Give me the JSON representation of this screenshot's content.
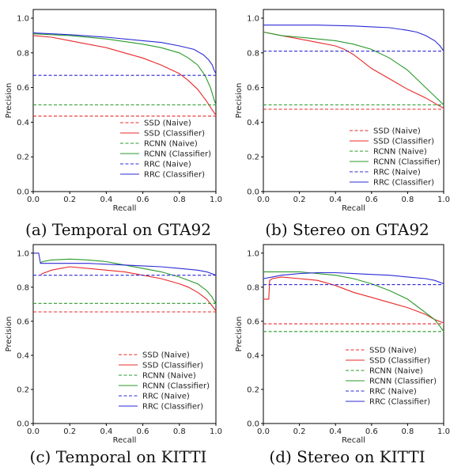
{
  "legend_labels": [
    "SSD (Naive)",
    "SSD (Classifier)",
    "RCNN (Naive)",
    "RCNN (Classifier)",
    "RRC (Naive)",
    "RRC (Classifier)"
  ],
  "colors": {
    "SSD": "#e8292b",
    "RCNN": "#2a9a2a",
    "RRC": "#2b2bd6"
  },
  "chart_data": [
    {
      "type": "line",
      "caption": "(a) Temporal on GTA92",
      "xlabel": "Recall",
      "ylabel": "Precision",
      "xlim": [
        0,
        1
      ],
      "ylim": [
        0,
        1.05
      ],
      "xticks": [
        "0.0",
        "0.2",
        "0.4",
        "0.6",
        "0.8",
        "1.0"
      ],
      "yticks": [
        "0.0",
        "0.2",
        "0.4",
        "0.6",
        "0.8",
        "1.0"
      ],
      "legend_position": "lower-right",
      "series": [
        {
          "name": "SSD (Naive)",
          "style": "dashed",
          "color": "#e8292b",
          "x": [
            0,
            1
          ],
          "y": [
            0.435,
            0.435
          ]
        },
        {
          "name": "SSD (Classifier)",
          "style": "solid",
          "color": "#e8292b",
          "x": [
            0,
            0.1,
            0.2,
            0.3,
            0.4,
            0.5,
            0.6,
            0.7,
            0.8,
            0.85,
            0.9,
            0.95,
            0.98,
            1.0
          ],
          "y": [
            0.9,
            0.89,
            0.87,
            0.85,
            0.83,
            0.8,
            0.77,
            0.73,
            0.68,
            0.64,
            0.59,
            0.52,
            0.47,
            0.44
          ]
        },
        {
          "name": "RCNN (Naive)",
          "style": "dashed",
          "color": "#2a9a2a",
          "x": [
            0,
            1
          ],
          "y": [
            0.5,
            0.5
          ]
        },
        {
          "name": "RCNN (Classifier)",
          "style": "solid",
          "color": "#2a9a2a",
          "x": [
            0,
            0.2,
            0.4,
            0.6,
            0.7,
            0.8,
            0.85,
            0.9,
            0.94,
            0.97,
            0.99,
            1.0
          ],
          "y": [
            0.91,
            0.9,
            0.88,
            0.85,
            0.83,
            0.8,
            0.77,
            0.73,
            0.67,
            0.6,
            0.53,
            0.5
          ]
        },
        {
          "name": "RRC (Naive)",
          "style": "dashed",
          "color": "#2b2bd6",
          "x": [
            0,
            1
          ],
          "y": [
            0.67,
            0.67
          ]
        },
        {
          "name": "RRC (Classifier)",
          "style": "solid",
          "color": "#2b2bd6",
          "x": [
            0,
            0.2,
            0.4,
            0.6,
            0.7,
            0.8,
            0.88,
            0.93,
            0.96,
            0.98,
            0.99,
            1.0
          ],
          "y": [
            0.915,
            0.905,
            0.89,
            0.87,
            0.86,
            0.84,
            0.82,
            0.79,
            0.76,
            0.73,
            0.7,
            0.68
          ]
        }
      ]
    },
    {
      "type": "line",
      "caption": "(b) Stereo on GTA92",
      "xlabel": "Recall",
      "ylabel": "Precision",
      "xlim": [
        0,
        1
      ],
      "ylim": [
        0,
        1.05
      ],
      "xticks": [
        "0.0",
        "0.2",
        "0.4",
        "0.6",
        "0.8",
        "1.0"
      ],
      "yticks": [
        "0.0",
        "0.2",
        "0.4",
        "0.6",
        "0.8",
        "1.0"
      ],
      "legend_position": "lower-right",
      "series": [
        {
          "name": "SSD (Naive)",
          "style": "dashed",
          "color": "#e8292b",
          "x": [
            0,
            1
          ],
          "y": [
            0.475,
            0.475
          ]
        },
        {
          "name": "SSD (Classifier)",
          "style": "solid",
          "color": "#e8292b",
          "x": [
            0,
            0.1,
            0.2,
            0.3,
            0.4,
            0.45,
            0.5,
            0.55,
            0.6,
            0.7,
            0.8,
            0.9,
            0.95,
            1.0
          ],
          "y": [
            0.92,
            0.9,
            0.88,
            0.86,
            0.84,
            0.82,
            0.79,
            0.75,
            0.71,
            0.65,
            0.59,
            0.54,
            0.51,
            0.48
          ]
        },
        {
          "name": "RCNN (Naive)",
          "style": "dashed",
          "color": "#2a9a2a",
          "x": [
            0,
            1
          ],
          "y": [
            0.5,
            0.5
          ]
        },
        {
          "name": "RCNN (Classifier)",
          "style": "solid",
          "color": "#2a9a2a",
          "x": [
            0,
            0.1,
            0.2,
            0.3,
            0.4,
            0.5,
            0.6,
            0.7,
            0.8,
            0.85,
            0.9,
            0.95,
            1.0
          ],
          "y": [
            0.92,
            0.9,
            0.89,
            0.88,
            0.87,
            0.85,
            0.82,
            0.77,
            0.7,
            0.65,
            0.6,
            0.55,
            0.5
          ]
        },
        {
          "name": "RRC (Naive)",
          "style": "dashed",
          "color": "#2b2bd6",
          "x": [
            0,
            1
          ],
          "y": [
            0.81,
            0.81
          ]
        },
        {
          "name": "RRC (Classifier)",
          "style": "solid",
          "color": "#2b2bd6",
          "x": [
            0,
            0.3,
            0.5,
            0.6,
            0.7,
            0.8,
            0.85,
            0.9,
            0.95,
            0.98,
            1.0
          ],
          "y": [
            0.96,
            0.96,
            0.955,
            0.95,
            0.945,
            0.93,
            0.92,
            0.9,
            0.87,
            0.84,
            0.81
          ]
        }
      ]
    },
    {
      "type": "line",
      "caption": "(c) Temporal on KITTI",
      "xlabel": "Recall",
      "ylabel": "Precision",
      "xlim": [
        0,
        1
      ],
      "ylim": [
        0,
        1.05
      ],
      "xticks": [
        "0.0",
        "0.2",
        "0.4",
        "0.6",
        "0.8",
        "1.0"
      ],
      "yticks": [
        "0.0",
        "0.2",
        "0.4",
        "0.6",
        "0.8",
        "1.0"
      ],
      "legend_position": "lower-right",
      "series": [
        {
          "name": "SSD (Naive)",
          "style": "dashed",
          "color": "#e8292b",
          "x": [
            0,
            1
          ],
          "y": [
            0.655,
            0.655
          ]
        },
        {
          "name": "SSD (Classifier)",
          "style": "solid",
          "color": "#e8292b",
          "x": [
            0.04,
            0.05,
            0.1,
            0.15,
            0.2,
            0.3,
            0.4,
            0.5,
            0.6,
            0.7,
            0.8,
            0.85,
            0.9,
            0.95,
            0.98,
            1.0
          ],
          "y": [
            0.87,
            0.88,
            0.9,
            0.91,
            0.92,
            0.91,
            0.9,
            0.89,
            0.87,
            0.85,
            0.82,
            0.8,
            0.77,
            0.73,
            0.69,
            0.66
          ]
        },
        {
          "name": "RCNN (Naive)",
          "style": "dashed",
          "color": "#2a9a2a",
          "x": [
            0,
            1
          ],
          "y": [
            0.705,
            0.705
          ]
        },
        {
          "name": "RCNN (Classifier)",
          "style": "solid",
          "color": "#2a9a2a",
          "x": [
            0.04,
            0.05,
            0.1,
            0.2,
            0.3,
            0.4,
            0.5,
            0.6,
            0.7,
            0.8,
            0.9,
            0.95,
            0.98,
            1.0
          ],
          "y": [
            0.94,
            0.95,
            0.96,
            0.965,
            0.96,
            0.95,
            0.93,
            0.91,
            0.89,
            0.86,
            0.82,
            0.78,
            0.74,
            0.7
          ]
        },
        {
          "name": "RRC (Naive)",
          "style": "dashed",
          "color": "#2b2bd6",
          "x": [
            0,
            1
          ],
          "y": [
            0.87,
            0.87
          ]
        },
        {
          "name": "RRC (Classifier)",
          "style": "solid",
          "color": "#2b2bd6",
          "x": [
            0,
            0.03,
            0.04,
            0.1,
            0.2,
            0.3,
            0.4,
            0.5,
            0.6,
            0.7,
            0.8,
            0.9,
            0.95,
            1.0
          ],
          "y": [
            1.0,
            1.0,
            0.94,
            0.94,
            0.94,
            0.94,
            0.935,
            0.93,
            0.925,
            0.92,
            0.91,
            0.9,
            0.89,
            0.87
          ]
        }
      ]
    },
    {
      "type": "line",
      "caption": "(d) Stereo on KITTI",
      "xlabel": "Recall",
      "ylabel": "Precision",
      "xlim": [
        0,
        1
      ],
      "ylim": [
        0,
        1.05
      ],
      "xticks": [
        "0.0",
        "0.2",
        "0.4",
        "0.6",
        "0.8",
        "1.0"
      ],
      "yticks": [
        "0.0",
        "0.2",
        "0.4",
        "0.6",
        "0.8",
        "1.0"
      ],
      "legend_position": "lower-right",
      "series": [
        {
          "name": "SSD (Naive)",
          "style": "dashed",
          "color": "#e8292b",
          "x": [
            0,
            1
          ],
          "y": [
            0.585,
            0.585
          ]
        },
        {
          "name": "SSD (Classifier)",
          "style": "solid",
          "color": "#e8292b",
          "x": [
            0,
            0.03,
            0.035,
            0.05,
            0.1,
            0.2,
            0.3,
            0.4,
            0.5,
            0.6,
            0.7,
            0.8,
            0.9,
            0.95,
            1.0
          ],
          "y": [
            0.73,
            0.73,
            0.84,
            0.85,
            0.86,
            0.85,
            0.84,
            0.81,
            0.77,
            0.74,
            0.71,
            0.68,
            0.64,
            0.61,
            0.59
          ]
        },
        {
          "name": "RCNN (Naive)",
          "style": "dashed",
          "color": "#2a9a2a",
          "x": [
            0,
            1
          ],
          "y": [
            0.54,
            0.54
          ]
        },
        {
          "name": "RCNN (Classifier)",
          "style": "solid",
          "color": "#2a9a2a",
          "x": [
            0,
            0.1,
            0.2,
            0.3,
            0.4,
            0.5,
            0.6,
            0.7,
            0.8,
            0.85,
            0.9,
            0.95,
            0.98,
            1.0
          ],
          "y": [
            0.89,
            0.89,
            0.89,
            0.88,
            0.87,
            0.85,
            0.82,
            0.78,
            0.73,
            0.69,
            0.65,
            0.61,
            0.57,
            0.54
          ]
        },
        {
          "name": "RRC (Naive)",
          "style": "dashed",
          "color": "#2b2bd6",
          "x": [
            0,
            1
          ],
          "y": [
            0.815,
            0.815
          ]
        },
        {
          "name": "RRC (Classifier)",
          "style": "solid",
          "color": "#2b2bd6",
          "x": [
            0,
            0.05,
            0.1,
            0.2,
            0.3,
            0.4,
            0.5,
            0.6,
            0.7,
            0.8,
            0.9,
            0.95,
            1.0
          ],
          "y": [
            0.85,
            0.86,
            0.87,
            0.88,
            0.885,
            0.885,
            0.88,
            0.875,
            0.87,
            0.86,
            0.85,
            0.84,
            0.82
          ]
        }
      ]
    }
  ]
}
